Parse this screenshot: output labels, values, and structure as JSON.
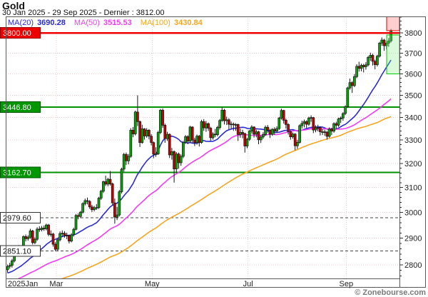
{
  "header": {
    "title": "Gold",
    "subtitle": "30 Jan 2025 - 29 Sep 2025 - Dernier : 3812.00"
  },
  "legend": {
    "items": [
      {
        "label": "MA(20)",
        "value": "3690.28",
        "color": "#2b2bd4"
      },
      {
        "label": "MA(50)",
        "value": "3515.53",
        "color": "#f23cf2"
      },
      {
        "label": "MA(100)",
        "value": "3430.84",
        "color": "#f5a623"
      }
    ]
  },
  "watermark": "© Zonebourse.com",
  "colors": {
    "up_candle": "#00a800",
    "down_candle": "#c40000",
    "candle_outline": "#161616",
    "grid": "#f0caca",
    "border": "#5a5a5a",
    "axis_text": "#222222",
    "resistance_line": "#ee0000",
    "support_line": "#009000",
    "pivot_line": "#444444"
  },
  "chart_data": {
    "type": "candlestick",
    "title": "Gold",
    "period": "30 Jan 2025 - 29 Sep 2025",
    "last_price": 3812.0,
    "y_axis": {
      "scale": "log",
      "ticks": [
        3800,
        3700,
        3600,
        3500,
        3400,
        3300,
        3200,
        3100,
        3000,
        2900,
        2800
      ],
      "minor_step": 20,
      "top_price": 3883,
      "bottom_price": 2750
    },
    "x_axis": {
      "labels": [
        {
          "text": "2025Jan",
          "index": 0
        },
        {
          "text": "Mar",
          "index": 22
        },
        {
          "text": "May",
          "index": 64
        },
        {
          "text": "Jul",
          "index": 106
        },
        {
          "text": "Sep",
          "index": 149
        }
      ]
    },
    "levels": [
      {
        "value": 3800.0,
        "label": "3800.00",
        "kind": "resistance",
        "line_color": "#ee0000",
        "label_bg": "#ee0000",
        "label_border": "#990000",
        "text_color": "#ffffff",
        "width": 2.5,
        "dashed": false
      },
      {
        "value": 3446.8,
        "label": "3446.80",
        "kind": "support",
        "line_color": "#009000",
        "label_bg": "#009700",
        "label_border": "#005500",
        "text_color": "#ffffff",
        "width": 2,
        "dashed": false
      },
      {
        "value": 3162.7,
        "label": "3162.70",
        "kind": "support",
        "line_color": "#009000",
        "label_bg": "#009700",
        "label_border": "#005500",
        "text_color": "#ffffff",
        "width": 2,
        "dashed": false
      },
      {
        "value": 2979.6,
        "label": "2979.60",
        "kind": "pivot",
        "line_color": "#444444",
        "label_bg": "#ffffff",
        "label_border": "#333333",
        "text_color": "#111111",
        "width": 1,
        "dashed": true
      },
      {
        "value": 2851.1,
        "label": "2851.10",
        "kind": "pivot",
        "line_color": "#444444",
        "label_bg": "#ffffff",
        "label_border": "#333333",
        "text_color": "#111111",
        "width": 1,
        "dashed": true
      }
    ],
    "zones": [
      {
        "name": "risk-zone",
        "price_from": 3810,
        "price_to": 3883,
        "fill": "#ff8888",
        "border": "#ee0000",
        "opacity": 0.4,
        "start_index": 167
      },
      {
        "name": "target-zone",
        "price_from": 3600,
        "price_to": 3790,
        "fill": "#88ee88",
        "border": "#00cc00",
        "opacity": 0.3,
        "start_index": 167
      }
    ],
    "moving_averages": [
      {
        "name": "MA(20)",
        "period": 20,
        "value": 3690.28,
        "color": "#2b2bd4"
      },
      {
        "name": "MA(50)",
        "period": 50,
        "value": 3515.53,
        "color": "#f23cf2"
      },
      {
        "name": "MA(100)",
        "period": 100,
        "value": 3430.84,
        "color": "#f5a623"
      }
    ],
    "ma_prehistory": {
      "start": 2560,
      "end": 2790,
      "days": 99
    },
    "candles": [
      [
        2782,
        2801,
        2772,
        2794
      ],
      [
        2794,
        2808,
        2786,
        2798
      ],
      [
        2798,
        2822,
        2790,
        2815
      ],
      [
        2815,
        2850,
        2809,
        2843
      ],
      [
        2843,
        2872,
        2836,
        2866
      ],
      [
        2866,
        2874,
        2848,
        2856
      ],
      [
        2856,
        2869,
        2845,
        2861
      ],
      [
        2861,
        2911,
        2855,
        2906
      ],
      [
        2906,
        2914,
        2888,
        2898
      ],
      [
        2898,
        2911,
        2890,
        2904
      ],
      [
        2904,
        2936,
        2898,
        2928
      ],
      [
        2928,
        2932,
        2876,
        2883
      ],
      [
        2883,
        2903,
        2877,
        2896
      ],
      [
        2896,
        2942,
        2890,
        2935
      ],
      [
        2935,
        2946,
        2924,
        2933
      ],
      [
        2933,
        2947,
        2926,
        2939
      ],
      [
        2939,
        2949,
        2928,
        2936
      ],
      [
        2936,
        2956,
        2930,
        2951
      ],
      [
        2951,
        2955,
        2908,
        2915
      ],
      [
        2915,
        2930,
        2906,
        2916
      ],
      [
        2916,
        2920,
        2868,
        2877
      ],
      [
        2877,
        2885,
        2851,
        2858
      ],
      [
        2858,
        2900,
        2852,
        2894
      ],
      [
        2894,
        2926,
        2888,
        2918
      ],
      [
        2918,
        2930,
        2905,
        2919
      ],
      [
        2919,
        2927,
        2902,
        2911
      ],
      [
        2911,
        2921,
        2896,
        2910
      ],
      [
        2910,
        2914,
        2880,
        2889
      ],
      [
        2889,
        2919,
        2884,
        2913
      ],
      [
        2913,
        2940,
        2906,
        2934
      ],
      [
        2934,
        2994,
        2930,
        2988
      ],
      [
        2988,
        2997,
        2973,
        2984
      ],
      [
        2984,
        3006,
        2978,
        3001
      ],
      [
        3001,
        3040,
        2996,
        3035
      ],
      [
        3035,
        3055,
        3028,
        3047
      ],
      [
        3047,
        3059,
        3032,
        3044
      ],
      [
        3044,
        3049,
        3014,
        3022
      ],
      [
        3022,
        3030,
        3002,
        3011
      ],
      [
        3011,
        3026,
        3004,
        3019
      ],
      [
        3019,
        3033,
        3010,
        3019
      ],
      [
        3019,
        3062,
        3014,
        3057
      ],
      [
        3057,
        3091,
        3050,
        3085
      ],
      [
        3085,
        3128,
        3078,
        3124
      ],
      [
        3124,
        3149,
        3106,
        3114
      ],
      [
        3114,
        3140,
        3105,
        3134
      ],
      [
        3134,
        3168,
        3108,
        3115
      ],
      [
        3115,
        3120,
        3028,
        3038
      ],
      [
        3038,
        3055,
        2956,
        2982
      ],
      [
        2982,
        3022,
        2970,
        2990
      ],
      [
        2990,
        3090,
        2984,
        3083
      ],
      [
        3083,
        3182,
        3076,
        3176
      ],
      [
        3176,
        3245,
        3166,
        3238
      ],
      [
        3238,
        3246,
        3193,
        3211
      ],
      [
        3211,
        3240,
        3196,
        3230
      ],
      [
        3230,
        3352,
        3224,
        3343
      ],
      [
        3343,
        3357,
        3312,
        3327
      ],
      [
        3327,
        3430,
        3320,
        3424
      ],
      [
        3424,
        3500,
        3361,
        3381
      ],
      [
        3381,
        3386,
        3270,
        3289
      ],
      [
        3289,
        3367,
        3284,
        3349
      ],
      [
        3349,
        3352,
        3302,
        3318
      ],
      [
        3318,
        3352,
        3310,
        3343
      ],
      [
        3343,
        3348,
        3303,
        3317
      ],
      [
        3317,
        3326,
        3277,
        3289
      ],
      [
        3289,
        3294,
        3222,
        3239
      ],
      [
        3239,
        3269,
        3228,
        3240
      ],
      [
        3240,
        3340,
        3236,
        3333
      ],
      [
        3333,
        3438,
        3326,
        3432
      ],
      [
        3432,
        3440,
        3354,
        3365
      ],
      [
        3365,
        3372,
        3288,
        3306
      ],
      [
        3306,
        3336,
        3296,
        3325
      ],
      [
        3325,
        3329,
        3223,
        3236
      ],
      [
        3236,
        3266,
        3216,
        3250
      ],
      [
        3250,
        3255,
        3120,
        3177
      ],
      [
        3177,
        3248,
        3160,
        3240
      ],
      [
        3240,
        3246,
        3178,
        3203
      ],
      [
        3203,
        3238,
        3190,
        3230
      ],
      [
        3230,
        3296,
        3222,
        3290
      ],
      [
        3290,
        3322,
        3283,
        3315
      ],
      [
        3315,
        3321,
        3282,
        3295
      ],
      [
        3295,
        3362,
        3288,
        3357
      ],
      [
        3357,
        3360,
        3286,
        3300
      ],
      [
        3300,
        3310,
        3274,
        3289
      ],
      [
        3289,
        3324,
        3280,
        3317
      ],
      [
        3317,
        3322,
        3272,
        3289
      ],
      [
        3289,
        3389,
        3284,
        3381
      ],
      [
        3381,
        3392,
        3340,
        3353
      ],
      [
        3353,
        3384,
        3336,
        3372
      ],
      [
        3372,
        3377,
        3340,
        3352
      ],
      [
        3352,
        3358,
        3296,
        3310
      ],
      [
        3310,
        3334,
        3302,
        3326
      ],
      [
        3326,
        3349,
        3312,
        3323
      ],
      [
        3323,
        3362,
        3316,
        3355
      ],
      [
        3355,
        3393,
        3346,
        3386
      ],
      [
        3386,
        3447,
        3380,
        3432
      ],
      [
        3432,
        3438,
        3368,
        3385
      ],
      [
        3385,
        3403,
        3366,
        3389
      ],
      [
        3389,
        3396,
        3347,
        3369
      ],
      [
        3369,
        3381,
        3349,
        3370
      ],
      [
        3370,
        3377,
        3340,
        3368
      ],
      [
        3368,
        3374,
        3340,
        3368
      ],
      [
        3368,
        3372,
        3296,
        3324
      ],
      [
        3324,
        3350,
        3310,
        3333
      ],
      [
        3333,
        3345,
        3308,
        3328
      ],
      [
        3328,
        3332,
        3246,
        3274
      ],
      [
        3274,
        3310,
        3264,
        3303
      ],
      [
        3303,
        3345,
        3296,
        3339
      ],
      [
        3339,
        3365,
        3328,
        3357
      ],
      [
        3357,
        3360,
        3311,
        3326
      ],
      [
        3326,
        3345,
        3312,
        3336
      ],
      [
        3336,
        3340,
        3282,
        3301
      ],
      [
        3301,
        3320,
        3287,
        3313
      ],
      [
        3313,
        3334,
        3305,
        3324
      ],
      [
        3324,
        3364,
        3318,
        3356
      ],
      [
        3356,
        3366,
        3332,
        3343
      ],
      [
        3343,
        3349,
        3309,
        3325
      ],
      [
        3325,
        3352,
        3318,
        3347
      ],
      [
        3347,
        3356,
        3323,
        3339
      ],
      [
        3339,
        3360,
        3331,
        3350
      ],
      [
        3350,
        3402,
        3344,
        3397
      ],
      [
        3397,
        3439,
        3390,
        3431
      ],
      [
        3431,
        3434,
        3372,
        3387
      ],
      [
        3387,
        3394,
        3350,
        3368
      ],
      [
        3368,
        3374,
        3324,
        3337
      ],
      [
        3337,
        3342,
        3302,
        3314
      ],
      [
        3314,
        3333,
        3306,
        3326
      ],
      [
        3326,
        3330,
        3256,
        3275
      ],
      [
        3275,
        3300,
        3262,
        3290
      ],
      [
        3290,
        3369,
        3285,
        3363
      ],
      [
        3363,
        3385,
        3350,
        3373
      ],
      [
        3373,
        3390,
        3355,
        3381
      ],
      [
        3381,
        3387,
        3352,
        3369
      ],
      [
        3369,
        3403,
        3362,
        3397
      ],
      [
        3397,
        3409,
        3380,
        3399
      ],
      [
        3399,
        3402,
        3330,
        3344
      ],
      [
        3344,
        3365,
        3334,
        3353
      ],
      [
        3353,
        3367,
        3338,
        3355
      ],
      [
        3355,
        3360,
        3320,
        3336
      ],
      [
        3336,
        3348,
        3322,
        3336
      ],
      [
        3336,
        3345,
        3318,
        3334
      ],
      [
        3334,
        3340,
        3302,
        3316
      ],
      [
        3316,
        3355,
        3310,
        3348
      ],
      [
        3348,
        3354,
        3322,
        3339
      ],
      [
        3339,
        3378,
        3332,
        3372
      ],
      [
        3372,
        3380,
        3347,
        3365
      ],
      [
        3365,
        3399,
        3358,
        3393
      ],
      [
        3393,
        3404,
        3375,
        3397
      ],
      [
        3397,
        3423,
        3385,
        3417
      ],
      [
        3417,
        3454,
        3410,
        3448
      ],
      [
        3448,
        3540,
        3442,
        3534
      ],
      [
        3534,
        3578,
        3526,
        3559
      ],
      [
        3559,
        3566,
        3511,
        3545
      ],
      [
        3545,
        3599,
        3538,
        3587
      ],
      [
        3587,
        3646,
        3580,
        3636
      ],
      [
        3636,
        3658,
        3611,
        3626
      ],
      [
        3626,
        3649,
        3613,
        3641
      ],
      [
        3641,
        3648,
        3607,
        3634
      ],
      [
        3634,
        3656,
        3620,
        3643
      ],
      [
        3643,
        3686,
        3636,
        3679
      ],
      [
        3679,
        3702,
        3662,
        3689
      ],
      [
        3689,
        3697,
        3640,
        3660
      ],
      [
        3660,
        3668,
        3622,
        3644
      ],
      [
        3644,
        3692,
        3635,
        3685
      ],
      [
        3685,
        3755,
        3678,
        3749
      ],
      [
        3749,
        3777,
        3736,
        3764
      ],
      [
        3764,
        3770,
        3711,
        3736
      ],
      [
        3736,
        3760,
        3718,
        3749
      ],
      [
        3749,
        3774,
        3731,
        3760
      ],
      [
        3760,
        3819,
        3752,
        3812
      ]
    ]
  }
}
